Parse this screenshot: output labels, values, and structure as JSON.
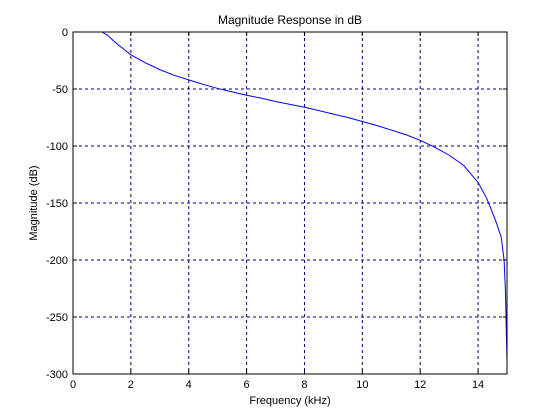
{
  "chart_data": {
    "type": "line",
    "title": "Magnitude Response in dB",
    "xlabel": "Frequency (kHz)",
    "ylabel": "Magnitude (dB)",
    "xlim": [
      0,
      15
    ],
    "ylim": [
      -300,
      0
    ],
    "xticks": [
      0,
      2,
      4,
      6,
      8,
      10,
      12,
      14
    ],
    "yticks": [
      0,
      -50,
      -100,
      -150,
      -200,
      -250,
      -300
    ],
    "grid": true,
    "grid_style": "dashed",
    "colors": {
      "line": "#0000ff",
      "grid": "#000080",
      "axes": "#000000"
    },
    "series": [
      {
        "x": [
          0,
          1.0,
          1.2,
          1.5,
          2,
          2.5,
          3,
          3.5,
          4,
          4.5,
          5,
          5.5,
          6,
          6.5,
          7,
          7.5,
          8,
          8.5,
          9,
          9.5,
          10,
          10.5,
          11,
          11.5,
          12,
          12.5,
          13,
          13.5,
          14,
          14.3,
          14.6,
          14.8,
          14.9,
          14.95,
          15.0
        ],
        "y": [
          0,
          0,
          -3,
          -10,
          -20,
          -27,
          -33,
          -38,
          -42,
          -46,
          -49.5,
          -52.5,
          -55.5,
          -58,
          -61,
          -63.5,
          -66,
          -69,
          -72,
          -75,
          -78.5,
          -82,
          -86,
          -90,
          -95,
          -101,
          -108,
          -117,
          -132,
          -146,
          -165,
          -180,
          -200,
          -230,
          -290
        ]
      }
    ]
  }
}
